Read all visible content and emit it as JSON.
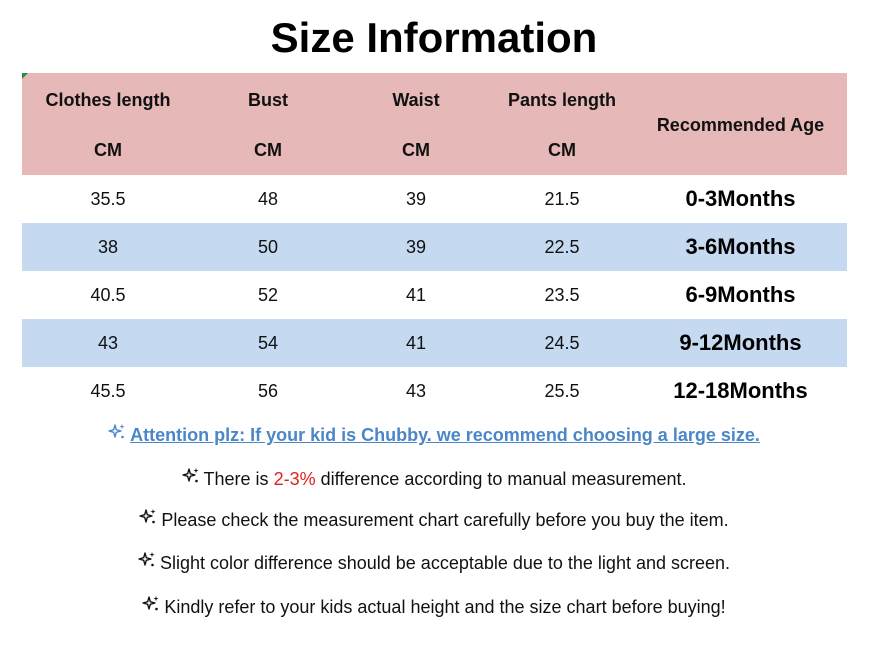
{
  "title": "Size Information",
  "table": {
    "headers": [
      {
        "label": "Clothes length",
        "unit": "CM"
      },
      {
        "label": "Bust",
        "unit": "CM"
      },
      {
        "label": "Waist",
        "unit": "CM"
      },
      {
        "label": "Pants length",
        "unit": "CM"
      },
      {
        "label": "Recommended Age"
      }
    ],
    "rows": [
      {
        "clothes_length": "35.5",
        "bust": "48",
        "waist": "39",
        "pants_length": "21.5",
        "age": "0-3Months"
      },
      {
        "clothes_length": "38",
        "bust": "50",
        "waist": "39",
        "pants_length": "22.5",
        "age": "3-6Months"
      },
      {
        "clothes_length": "40.5",
        "bust": "52",
        "waist": "41",
        "pants_length": "23.5",
        "age": "6-9Months"
      },
      {
        "clothes_length": "43",
        "bust": "54",
        "waist": "41",
        "pants_length": "24.5",
        "age": "9-12Months"
      },
      {
        "clothes_length": "45.5",
        "bust": "56",
        "waist": "43",
        "pants_length": "25.5",
        "age": "12-18Months"
      }
    ]
  },
  "notes": {
    "attention": "Attention plz: If your kid is Chubby. we recommend choosing a large size.",
    "difference_prefix": "There is ",
    "difference_value": "2-3%",
    "difference_suffix": " difference according to manual measurement.",
    "check_chart": "Please check the measurement chart carefully before you buy the item.",
    "color_difference": "Slight color difference should be acceptable due to the light and screen.",
    "refer_height": "Kindly refer to your kids actual height and the size chart before buying!"
  },
  "colors": {
    "header_bg": "#e6b8b7",
    "shaded_row_bg": "#c5d9f1",
    "attention_text": "#4a86c8",
    "highlight_text": "#e02020",
    "sparkle_icon_blue": "#4a86c8",
    "sparkle_icon_dark": "#111111"
  },
  "icons": {
    "sparkle": "sparkle-icon"
  }
}
